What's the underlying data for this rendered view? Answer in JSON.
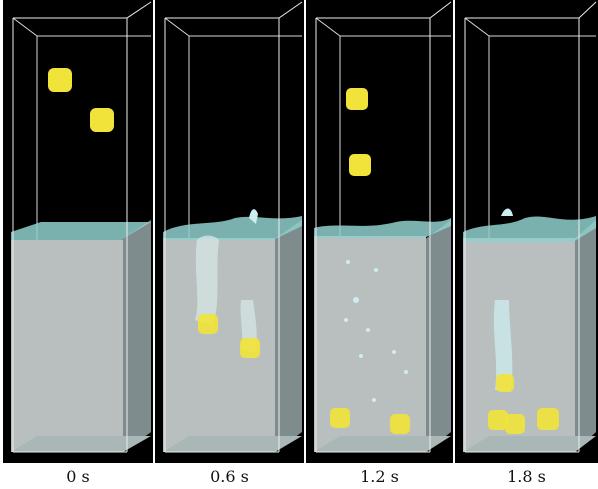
{
  "figure": {
    "panels": [
      {
        "time_label": "0 s"
      },
      {
        "time_label": "0.6 s"
      },
      {
        "time_label": "1.2 s"
      },
      {
        "time_label": "1.8 s"
      }
    ]
  },
  "colors": {
    "background": "#000000",
    "water_side": "#a9b2b2",
    "water_front": "#b7bebe",
    "water_surface": "#8ecdc9",
    "splash": "#cdeef0",
    "cube": "#f2e33a",
    "tank_edge": "#e6e6e6"
  }
}
